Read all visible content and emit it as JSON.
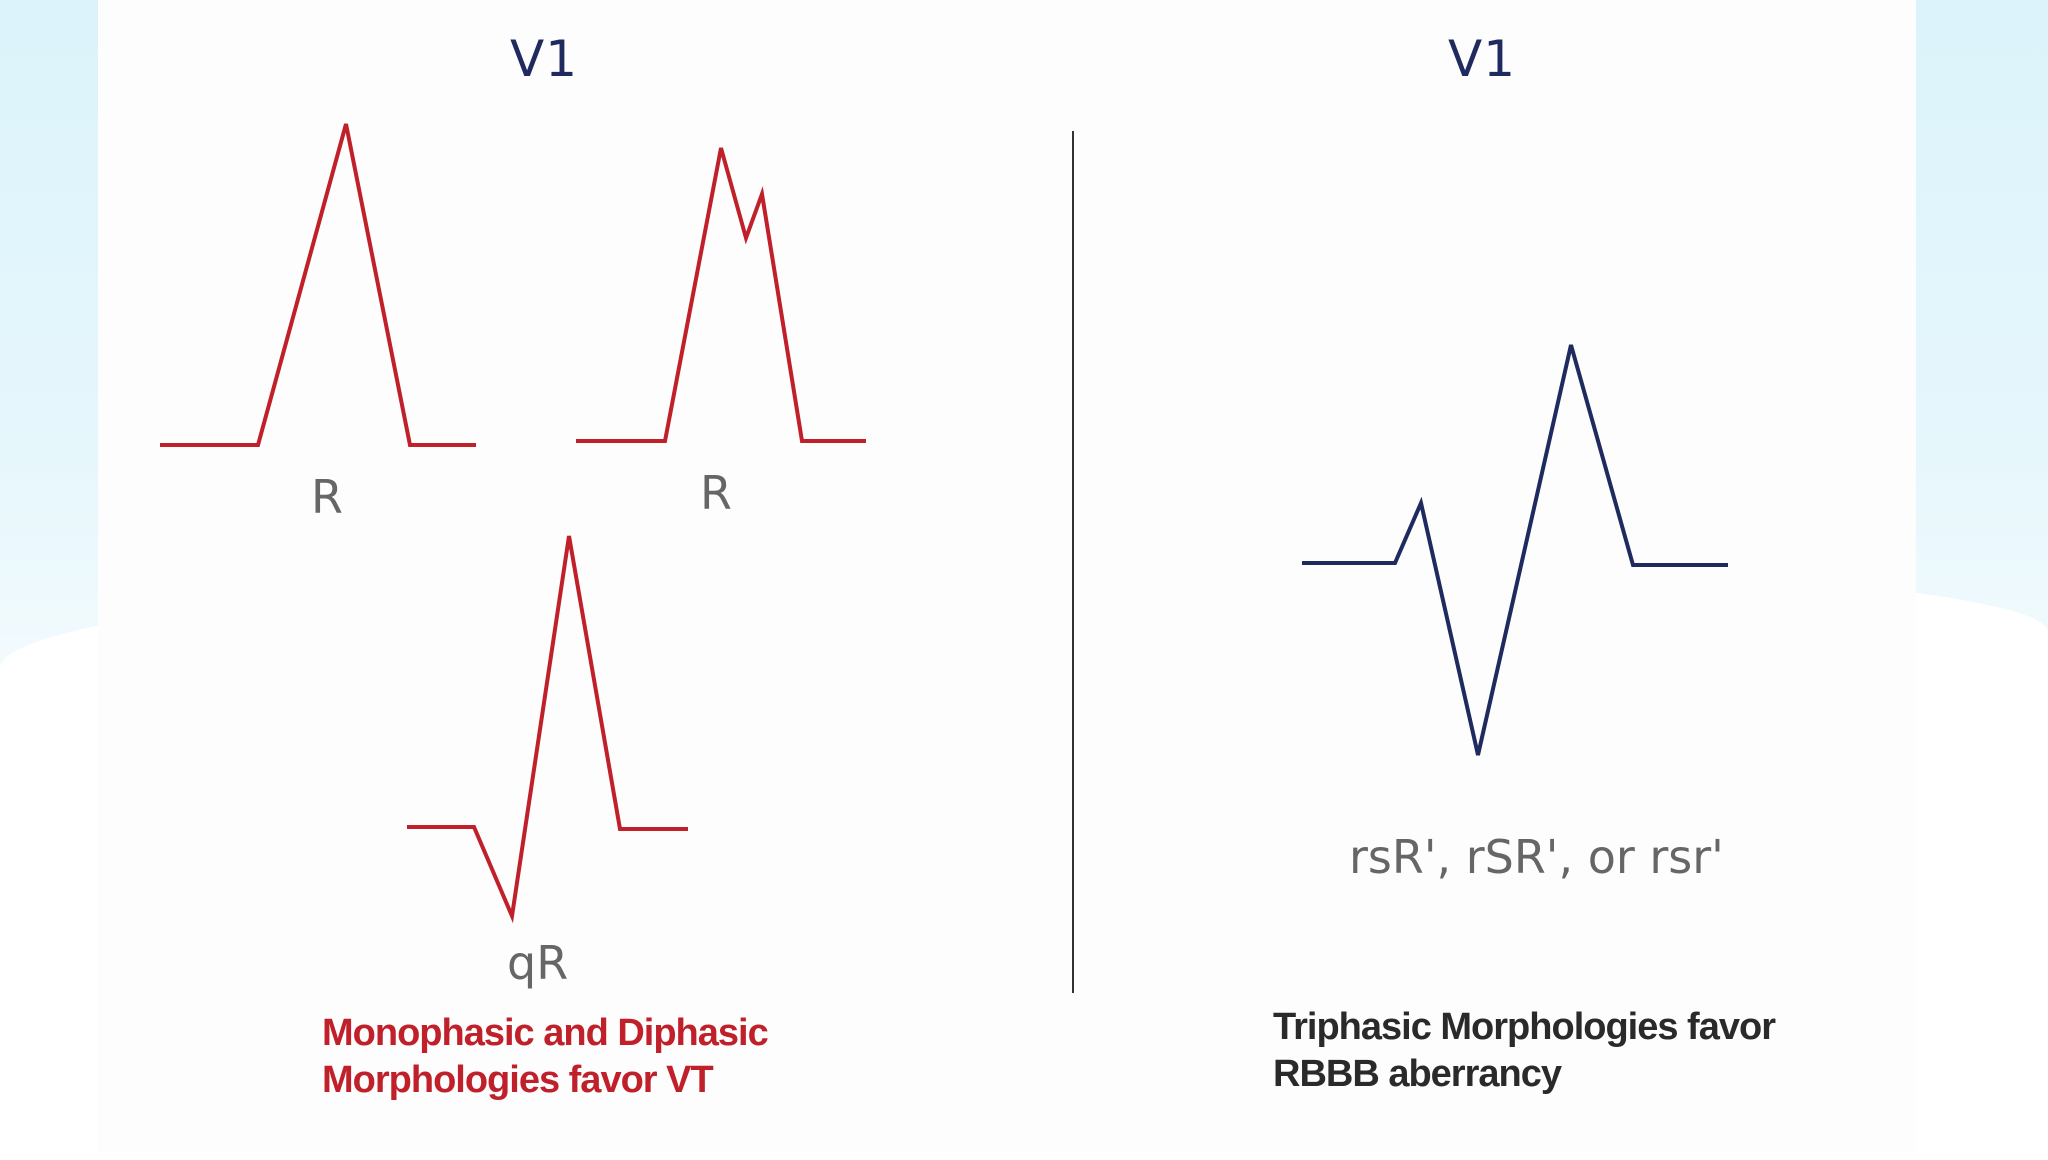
{
  "left_panel": {
    "lead": "V1",
    "morphologies": [
      {
        "label": "R"
      },
      {
        "label": "R"
      },
      {
        "label": "qR"
      }
    ],
    "caption_lines": [
      "Monophasic and Diphasic",
      "Morphologies favor VT"
    ],
    "color": "#c0202a"
  },
  "right_panel": {
    "lead": "V1",
    "morphology_label": "rsR', rSR', or rsr'",
    "caption_lines": [
      "Triphasic Morphologies favor",
      "RBBB aberrancy"
    ],
    "color": "#1f2a5e"
  }
}
